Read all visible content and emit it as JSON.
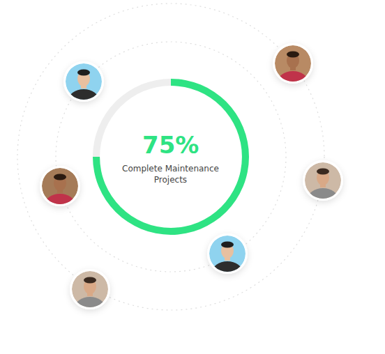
{
  "chart_data": {
    "type": "pie",
    "categories": [
      "Complete Maintenance Projects",
      null
    ],
    "values": [
      75,
      25
    ],
    "value_labels": [
      "75%",
      null
    ],
    "colors": [
      "#2ee383",
      "#eeeeee"
    ]
  }
}
